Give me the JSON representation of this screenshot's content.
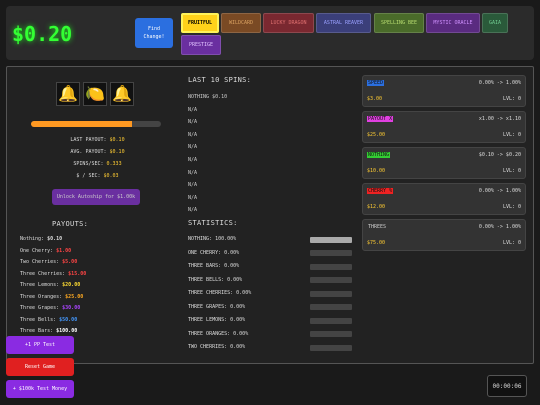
{
  "header": {
    "money": "$0.20",
    "find_change": "Find Change!",
    "tabs": [
      "FRUITFUL",
      "WILDCARD",
      "LUCKY DRAGON",
      "ASTRAL REAVER",
      "SPELLING BEE",
      "MYSTIC ORACLE",
      "GAIA",
      "PRESTIGE"
    ],
    "colors": {
      "fruitful": "#ffd21a",
      "wildcard": "#7a4a24",
      "lucky_dragon": "#7a2830",
      "astral_reaver": "#3b3f7a",
      "spelling_bee": "#4a6b2a",
      "mystic_oracle": "#5a2b80",
      "gaia": "#2a5a3a",
      "prestige": "#6a2fa0"
    }
  },
  "machine": {
    "reels": [
      "bell-icon",
      "lemon-icon",
      "bell-icon"
    ],
    "progress": 0.78,
    "last_payout_label": "LAST PAYOUT:",
    "last_payout": "$0.10",
    "avg_payout_label": "AVG. PAYOUT:",
    "avg_payout": "$0.10",
    "spins_sec_label": "SPINS/SEC:",
    "spins_sec": "0.333",
    "dollar_sec_label": "$ / SEC:",
    "dollar_sec": "$0.03",
    "autospin": "Unlock Autoship for $1.00k"
  },
  "payouts": {
    "title": "PAYOUTS:",
    "items": [
      {
        "label": "Nothing:",
        "value": "$0.10",
        "color": "#dddddd"
      },
      {
        "label": "One Cherry:",
        "value": "$1.00",
        "color": "#ff4444"
      },
      {
        "label": "Two Cherries:",
        "value": "$5.00",
        "color": "#ff4444"
      },
      {
        "label": "Three Cherries:",
        "value": "$15.00",
        "color": "#ff4444"
      },
      {
        "label": "Three Lemons:",
        "value": "$20.00",
        "color": "#ffdd33"
      },
      {
        "label": "Three Oranges:",
        "value": "$25.00",
        "color": "#ffaa22"
      },
      {
        "label": "Three Grapes:",
        "value": "$30.00",
        "color": "#aa44ff"
      },
      {
        "label": "Three Bells:",
        "value": "$50.00",
        "color": "#4499ff"
      },
      {
        "label": "Three Bars:",
        "value": "$100.00",
        "color": "#ffffff"
      }
    ]
  },
  "spins": {
    "title": "LAST 10 SPINS:",
    "items": [
      "NOTHING $0.10",
      "N/A",
      "N/A",
      "N/A",
      "N/A",
      "N/A",
      "N/A",
      "N/A",
      "N/A",
      "N/A"
    ]
  },
  "statistics": {
    "title": "STATISTICS:",
    "items": [
      {
        "label": "NOTHING: 100.00%",
        "fill": 1.0
      },
      {
        "label": "ONE CHERRY: 0.00%",
        "fill": 0
      },
      {
        "label": "THREE BARS: 0.00%",
        "fill": 0
      },
      {
        "label": "THREE BELLS: 0.00%",
        "fill": 0
      },
      {
        "label": "THREE CHERRIES: 0.00%",
        "fill": 0
      },
      {
        "label": "THREE GRAPES: 0.00%",
        "fill": 0
      },
      {
        "label": "THREE LEMONS: 0.00%",
        "fill": 0
      },
      {
        "label": "THREE ORANGES: 0.00%",
        "fill": 0
      },
      {
        "label": "TWO CHERRIES: 0.00%",
        "fill": 0
      }
    ]
  },
  "upgrades": [
    {
      "name": "SPEED",
      "name_bg": "#2b6fe0",
      "change": "0.00% -> 1.00%",
      "cost": "$3.00",
      "level": "LVL: 0"
    },
    {
      "name": "PAYOUT X",
      "name_bg": "#e040e0",
      "change": "x1.00 -> x1.10",
      "cost": "$25.00",
      "level": "LVL: 0"
    },
    {
      "name": "NOTHING",
      "name_bg": "#33cc33",
      "change": "$0.10 -> $0.20",
      "cost": "$10.00",
      "level": "LVL: 0"
    },
    {
      "name": "CHERRY %",
      "name_bg": "#ee2222",
      "change": "0.00% -> 1.00%",
      "cost": "$12.00",
      "level": "LVL: 0"
    },
    {
      "name": "THREES",
      "name_bg": "transparent",
      "change": "0.00% -> 1.00%",
      "cost": "$75.00",
      "level": "LVL: 0"
    }
  ],
  "test_buttons": {
    "pp": "+1 PP Test",
    "reset": "Reset Game",
    "money": "+ $100k Test Money",
    "colors": {
      "pp": "#8a2be2",
      "reset": "#e02020",
      "money": "#8a2be2"
    }
  },
  "timer": "00:00:06"
}
